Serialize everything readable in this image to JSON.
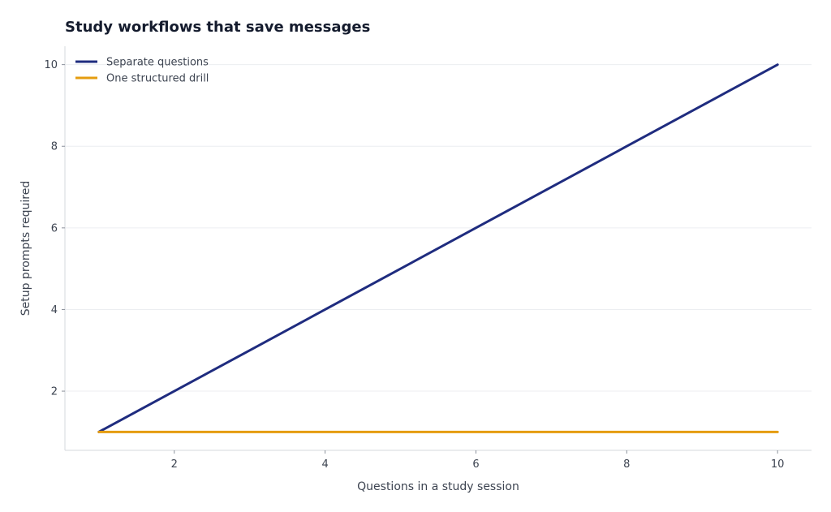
{
  "chart_data": {
    "type": "line",
    "title": "Study workflows that save messages",
    "xlabel": "Questions in a study session",
    "ylabel": "Setup prompts required",
    "xlim": [
      0.55,
      10.45
    ],
    "ylim": [
      0.55,
      10.45
    ],
    "xticks": [
      2,
      4,
      6,
      8,
      10
    ],
    "yticks": [
      2,
      4,
      6,
      8,
      10
    ],
    "grid": "horizontal",
    "legend_position": "top-left",
    "series": [
      {
        "name": "Separate questions",
        "color": "#1f2c7f",
        "x": [
          1,
          2,
          3,
          4,
          5,
          6,
          7,
          8,
          9,
          10
        ],
        "y": [
          1,
          2,
          3,
          4,
          5,
          6,
          7,
          8,
          9,
          10
        ]
      },
      {
        "name": "One structured drill",
        "color": "#e59c0f",
        "x": [
          1,
          2,
          3,
          4,
          5,
          6,
          7,
          8,
          9,
          10
        ],
        "y": [
          1,
          1,
          1,
          1,
          1,
          1,
          1,
          1,
          1,
          1
        ]
      }
    ]
  }
}
